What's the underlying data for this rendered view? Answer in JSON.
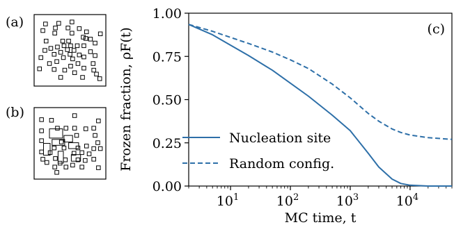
{
  "panels": {
    "a": {
      "label": "(a)",
      "squares": [
        [
          0.53,
          0.07
        ],
        [
          0.33,
          0.09
        ],
        [
          0.13,
          0.1
        ],
        [
          0.28,
          0.16
        ],
        [
          0.47,
          0.16
        ],
        [
          0.64,
          0.17
        ],
        [
          0.09,
          0.2
        ],
        [
          0.75,
          0.22
        ],
        [
          0.53,
          0.24
        ],
        [
          0.27,
          0.24
        ],
        [
          0.96,
          0.25
        ],
        [
          0.74,
          0.32
        ],
        [
          0.81,
          0.33
        ],
        [
          0.39,
          0.36
        ],
        [
          0.48,
          0.36
        ],
        [
          0.14,
          0.36
        ],
        [
          0.88,
          0.39
        ],
        [
          0.31,
          0.45
        ],
        [
          0.41,
          0.43
        ],
        [
          0.51,
          0.43
        ],
        [
          0.61,
          0.43
        ],
        [
          0.71,
          0.43
        ],
        [
          0.21,
          0.47
        ],
        [
          0.46,
          0.49
        ],
        [
          0.56,
          0.5
        ],
        [
          0.36,
          0.53
        ],
        [
          0.81,
          0.52
        ],
        [
          0.26,
          0.56
        ],
        [
          0.5,
          0.56
        ],
        [
          0.64,
          0.57
        ],
        [
          0.71,
          0.6
        ],
        [
          0.88,
          0.58
        ],
        [
          0.06,
          0.61
        ],
        [
          0.4,
          0.61
        ],
        [
          0.54,
          0.63
        ],
        [
          0.3,
          0.67
        ],
        [
          0.19,
          0.7
        ],
        [
          0.62,
          0.7
        ],
        [
          0.85,
          0.7
        ],
        [
          0.51,
          0.74
        ],
        [
          0.04,
          0.78
        ],
        [
          0.71,
          0.77
        ],
        [
          0.26,
          0.79
        ],
        [
          0.42,
          0.8
        ],
        [
          0.57,
          0.84
        ],
        [
          0.9,
          0.86
        ],
        [
          0.69,
          0.91
        ],
        [
          0.36,
          0.91
        ],
        [
          0.95,
          0.93
        ],
        [
          0.86,
          0.8
        ],
        [
          0.12,
          0.5
        ],
        [
          0.7,
          0.3
        ]
      ],
      "rects": []
    },
    "b": {
      "label": "(b)",
      "squares": [
        [
          0.57,
          0.08
        ],
        [
          0.07,
          0.14
        ],
        [
          0.22,
          0.15
        ],
        [
          0.93,
          0.16
        ],
        [
          0.31,
          0.27
        ],
        [
          0.44,
          0.27
        ],
        [
          0.57,
          0.27
        ],
        [
          0.86,
          0.27
        ],
        [
          0.07,
          0.31
        ],
        [
          0.74,
          0.28
        ],
        [
          0.6,
          0.38
        ],
        [
          0.88,
          0.38
        ],
        [
          0.07,
          0.46
        ],
        [
          0.37,
          0.48
        ],
        [
          0.92,
          0.49
        ],
        [
          0.26,
          0.57
        ],
        [
          0.41,
          0.57
        ],
        [
          0.62,
          0.57
        ],
        [
          0.75,
          0.54
        ],
        [
          0.86,
          0.58
        ],
        [
          0.96,
          0.58
        ],
        [
          0.07,
          0.63
        ],
        [
          0.2,
          0.64
        ],
        [
          0.56,
          0.65
        ],
        [
          0.68,
          0.64
        ],
        [
          0.79,
          0.66
        ],
        [
          0.09,
          0.74
        ],
        [
          0.28,
          0.73
        ],
        [
          0.43,
          0.75
        ],
        [
          0.62,
          0.75
        ],
        [
          0.73,
          0.76
        ],
        [
          0.86,
          0.74
        ],
        [
          0.15,
          0.79
        ],
        [
          0.35,
          0.8
        ],
        [
          0.54,
          0.83
        ],
        [
          0.68,
          0.86
        ],
        [
          0.27,
          0.86
        ],
        [
          0.44,
          0.86
        ],
        [
          0.93,
          0.87
        ],
        [
          0.3,
          0.94
        ]
      ],
      "rects": [
        [
          0.19,
          0.28,
          0.2,
          0.14
        ],
        [
          0.41,
          0.38,
          0.13,
          0.1
        ],
        [
          0.1,
          0.5,
          0.1,
          0.18
        ],
        [
          0.23,
          0.44,
          0.19,
          0.09
        ],
        [
          0.48,
          0.49,
          0.15,
          0.09
        ],
        [
          0.52,
          0.67,
          0.14,
          0.1
        ],
        [
          0.32,
          0.62,
          0.08,
          0.18
        ]
      ]
    }
  },
  "chart_data": {
    "type": "line",
    "panel_label": "(c)",
    "xlabel": "MC time, t",
    "ylabel": "Frozen fraction, ρF(t)",
    "xscale": "log",
    "xlim": [
      2,
      50000
    ],
    "ylim": [
      0,
      1
    ],
    "yticks": [
      0.0,
      0.25,
      0.5,
      0.75,
      1.0
    ],
    "ytick_labels": [
      "0.00",
      "0.25",
      "0.50",
      "0.75",
      "1.00"
    ],
    "xticks": [
      10,
      100,
      1000,
      10000
    ],
    "xtick_labels": [
      {
        "base": "10",
        "exp": "1"
      },
      {
        "base": "10",
        "exp": "2"
      },
      {
        "base": "10",
        "exp": "3"
      },
      {
        "base": "10",
        "exp": "4"
      }
    ],
    "legend_position": "lower-left",
    "series": [
      {
        "name": "Nucleation site",
        "style": "solid",
        "color": "#2d6fa8",
        "x": [
          2,
          5,
          10,
          20,
          50,
          100,
          200,
          500,
          1000,
          2000,
          3000,
          5000,
          7000,
          10000,
          20000,
          50000
        ],
        "y": [
          0.935,
          0.875,
          0.815,
          0.755,
          0.67,
          0.595,
          0.52,
          0.41,
          0.32,
          0.19,
          0.11,
          0.04,
          0.015,
          0.005,
          0.0,
          0.0
        ]
      },
      {
        "name": "Random config.",
        "style": "dashed",
        "color": "#2d6fa8",
        "x": [
          2,
          5,
          10,
          20,
          50,
          100,
          200,
          500,
          1000,
          2000,
          3000,
          5000,
          7000,
          10000,
          20000,
          50000
        ],
        "y": [
          0.935,
          0.895,
          0.86,
          0.825,
          0.775,
          0.73,
          0.68,
          0.59,
          0.51,
          0.42,
          0.375,
          0.33,
          0.31,
          0.295,
          0.28,
          0.27
        ]
      }
    ]
  }
}
